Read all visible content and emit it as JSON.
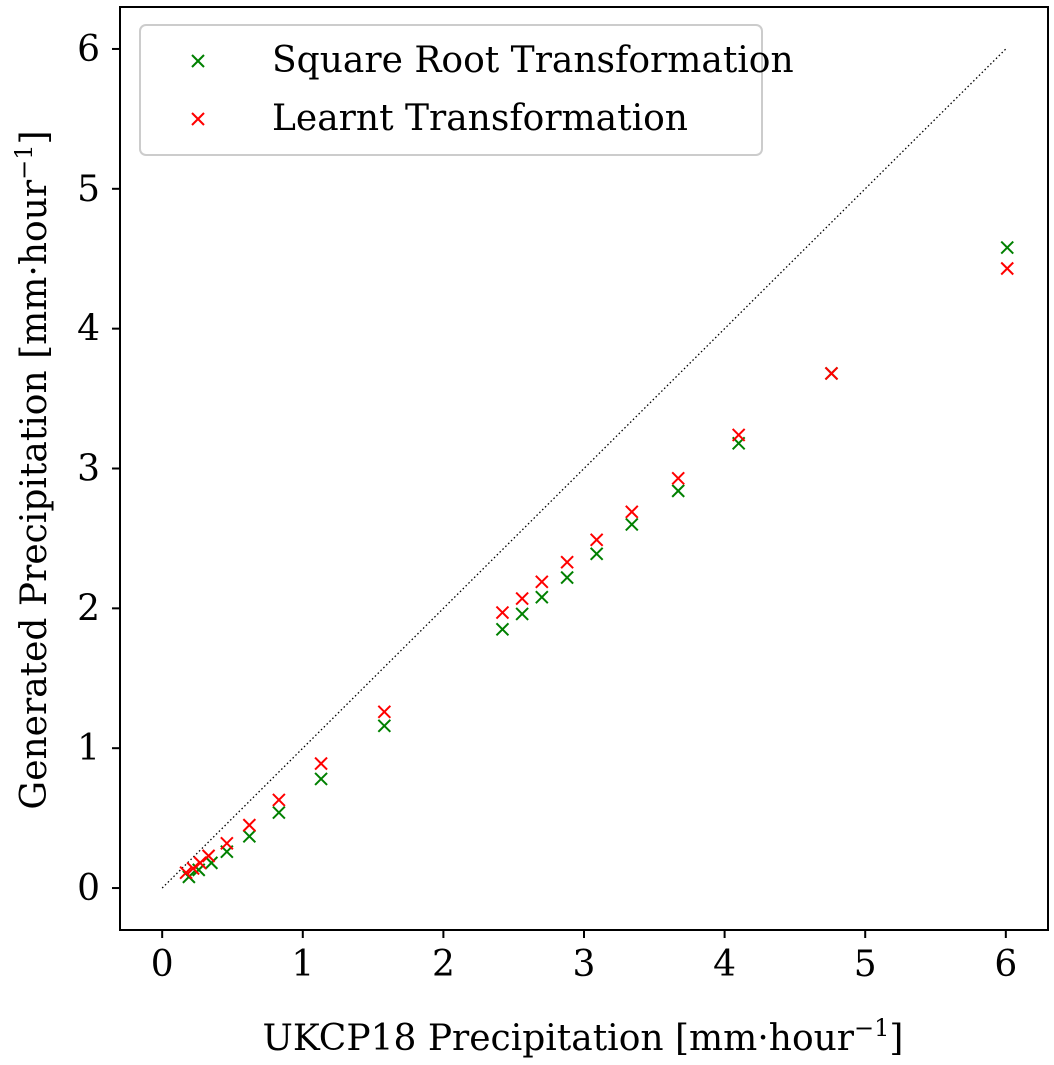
{
  "chart_data": {
    "type": "scatter",
    "title": "",
    "xlabel": "UKCP18 Precipitation [mm·hour",
    "xlabel_sup": "−1",
    "xlabel_end": "]",
    "ylabel": "Generated Precipitation [mm·hour",
    "ylabel_sup": "−1",
    "ylabel_end": "]",
    "xlim": [
      -0.3,
      6.3
    ],
    "ylim": [
      -0.3,
      6.3
    ],
    "xticks": [
      "0",
      "1",
      "2",
      "3",
      "4",
      "5",
      "6"
    ],
    "yticks": [
      "0",
      "1",
      "2",
      "3",
      "4",
      "5",
      "6"
    ],
    "grid": false,
    "legend_position": "top-left",
    "reference_line": {
      "style": "dotted",
      "color": "#000000",
      "from": [
        0,
        0
      ],
      "to": [
        6,
        6
      ]
    },
    "series": [
      {
        "name": "Square Root Transformation",
        "color": "#008000",
        "marker": "x",
        "x": [
          0.19,
          0.26,
          0.35,
          0.46,
          0.62,
          0.83,
          1.13,
          1.58,
          2.42,
          2.56,
          2.7,
          2.88,
          3.09,
          3.34,
          3.67,
          4.1,
          4.76,
          6.01
        ],
        "y": [
          0.08,
          0.13,
          0.18,
          0.26,
          0.37,
          0.54,
          0.78,
          1.16,
          1.85,
          1.96,
          2.08,
          2.22,
          2.39,
          2.6,
          2.84,
          3.18,
          3.68,
          4.58
        ]
      },
      {
        "name": "Learnt Transformation",
        "color": "#ff0000",
        "marker": "x",
        "x": [
          0.17,
          0.22,
          0.27,
          0.33,
          0.46,
          0.62,
          0.83,
          1.13,
          1.58,
          2.42,
          2.56,
          2.7,
          2.88,
          3.09,
          3.34,
          3.67,
          4.1,
          4.76,
          6.01
        ],
        "y": [
          0.11,
          0.14,
          0.18,
          0.23,
          0.32,
          0.45,
          0.63,
          0.89,
          1.26,
          1.97,
          2.07,
          2.19,
          2.33,
          2.49,
          2.69,
          2.93,
          3.24,
          3.68,
          4.43
        ]
      }
    ]
  }
}
